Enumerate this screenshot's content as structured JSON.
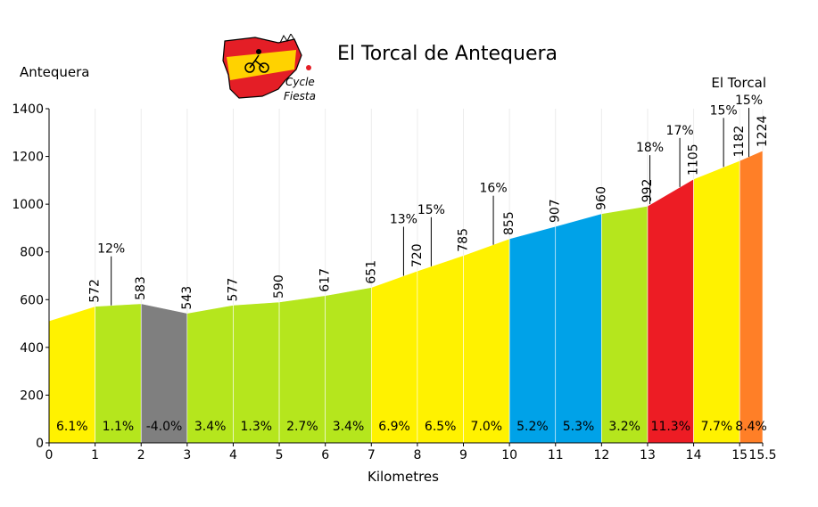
{
  "chart_data": {
    "type": "area",
    "title": "El Torcal de Antequera",
    "start_label": "Antequera",
    "end_label": "El Torcal",
    "xlabel": "Kilometres",
    "ylabel": "",
    "xlim": [
      0,
      15.5
    ],
    "ylim": [
      0,
      1400
    ],
    "x_ticks": [
      "0",
      "1",
      "2",
      "3",
      "4",
      "5",
      "6",
      "7",
      "8",
      "9",
      "10",
      "11",
      "12",
      "13",
      "14",
      "15",
      "15.5"
    ],
    "y_ticks": [
      "0",
      "200",
      "400",
      "600",
      "800",
      "1000",
      "1200",
      "1400"
    ],
    "grid": "vertical",
    "profile": [
      {
        "x": 0,
        "y": 511
      },
      {
        "x": 1,
        "y": 572
      },
      {
        "x": 2,
        "y": 583
      },
      {
        "x": 3,
        "y": 543
      },
      {
        "x": 4,
        "y": 577
      },
      {
        "x": 5,
        "y": 590
      },
      {
        "x": 6,
        "y": 617
      },
      {
        "x": 7,
        "y": 651
      },
      {
        "x": 8,
        "y": 720
      },
      {
        "x": 9,
        "y": 785
      },
      {
        "x": 10,
        "y": 855
      },
      {
        "x": 11,
        "y": 907
      },
      {
        "x": 12,
        "y": 960
      },
      {
        "x": 13,
        "y": 992
      },
      {
        "x": 14,
        "y": 1105
      },
      {
        "x": 15,
        "y": 1182
      },
      {
        "x": 15.5,
        "y": 1224
      }
    ],
    "elevation_labels": [
      {
        "x": 1,
        "y": 572,
        "label": "572"
      },
      {
        "x": 2,
        "y": 583,
        "label": "583"
      },
      {
        "x": 3,
        "y": 543,
        "label": "543"
      },
      {
        "x": 4,
        "y": 577,
        "label": "577"
      },
      {
        "x": 5,
        "y": 590,
        "label": "590"
      },
      {
        "x": 6,
        "y": 617,
        "label": "617"
      },
      {
        "x": 7,
        "y": 651,
        "label": "651"
      },
      {
        "x": 8,
        "y": 720,
        "label": "720"
      },
      {
        "x": 9,
        "y": 785,
        "label": "785"
      },
      {
        "x": 10,
        "y": 855,
        "label": "855"
      },
      {
        "x": 11,
        "y": 907,
        "label": "907"
      },
      {
        "x": 12,
        "y": 960,
        "label": "960"
      },
      {
        "x": 13,
        "y": 992,
        "label": "992"
      },
      {
        "x": 14,
        "y": 1105,
        "label": "1105"
      },
      {
        "x": 15,
        "y": 1182,
        "label": "1182"
      },
      {
        "x": 15.5,
        "y": 1224,
        "label": "1224"
      }
    ],
    "segments": [
      {
        "label": "6.1%",
        "color": "#FFF200"
      },
      {
        "label": "1.1%",
        "color": "#B5E61D"
      },
      {
        "label": "-4.0%",
        "color": "#7F7F7F"
      },
      {
        "label": "3.4%",
        "color": "#B5E61D"
      },
      {
        "label": "1.3%",
        "color": "#B5E61D"
      },
      {
        "label": "2.7%",
        "color": "#B5E61D"
      },
      {
        "label": "3.4%",
        "color": "#B5E61D"
      },
      {
        "label": "6.9%",
        "color": "#FFF200"
      },
      {
        "label": "6.5%",
        "color": "#FFF200"
      },
      {
        "label": "7.0%",
        "color": "#FFF200"
      },
      {
        "label": "5.2%",
        "color": "#00A2E8"
      },
      {
        "label": "5.3%",
        "color": "#00A2E8"
      },
      {
        "label": "3.2%",
        "color": "#B5E61D"
      },
      {
        "label": "11.3%",
        "color": "#ED1C24"
      },
      {
        "label": "7.7%",
        "color": "#FFF200"
      },
      {
        "label": "8.4%",
        "color": "#FF7F27"
      }
    ],
    "max_gradients": [
      {
        "x": 1.35,
        "y": 576,
        "label": "12%"
      },
      {
        "x": 7.7,
        "y": 700,
        "label": "13%"
      },
      {
        "x": 8.3,
        "y": 740,
        "label": "15%"
      },
      {
        "x": 9.65,
        "y": 830,
        "label": "16%"
      },
      {
        "x": 13.05,
        "y": 1000,
        "label": "18%"
      },
      {
        "x": 13.7,
        "y": 1072,
        "label": "17%"
      },
      {
        "x": 14.65,
        "y": 1156,
        "label": "15%"
      },
      {
        "x": 15.2,
        "y": 1198,
        "label": "15%"
      }
    ],
    "logo_text": [
      "Cycle",
      "Fiesta"
    ]
  }
}
